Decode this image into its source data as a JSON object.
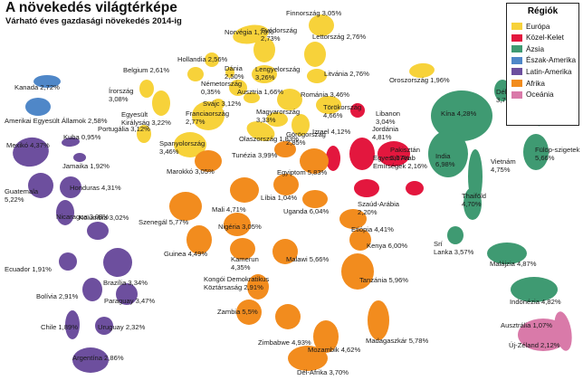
{
  "header": {
    "title": "A növekedés világtérképe",
    "subtitle": "Várható éves gazdasági növekedés 2014-ig"
  },
  "legend": {
    "title": "Régiók",
    "items": [
      {
        "label": "Európa",
        "color": "#f7d23a"
      },
      {
        "label": "Közel-Kelet",
        "color": "#e3173e"
      },
      {
        "label": "Ázsia",
        "color": "#3f9a72"
      },
      {
        "label": "Észak-Amerika",
        "color": "#4f87c8"
      },
      {
        "label": "Latin-Amerika",
        "color": "#6d4f9e"
      },
      {
        "label": "Afrika",
        "color": "#f28c1e"
      },
      {
        "label": "Oceánia",
        "color": "#d97aa9"
      }
    ]
  },
  "countries": [
    {
      "label": "Finnország 3,05%",
      "region": "Európa"
    },
    {
      "label": "Norvégia 1,73%",
      "region": "Európa"
    },
    {
      "label": "Svédország 2,73%",
      "region": "Európa"
    },
    {
      "label": "Lettország 2,76%",
      "region": "Európa"
    },
    {
      "label": "Hollandia 2,56%",
      "region": "Európa"
    },
    {
      "label": "Belgium 2,61%",
      "region": "Európa"
    },
    {
      "label": "Dánia 2,50%",
      "region": "Európa"
    },
    {
      "label": "Lengyelország 3,26%",
      "region": "Európa"
    },
    {
      "label": "Litvánia 2,76%",
      "region": "Európa"
    },
    {
      "label": "Oroszország 1,96%",
      "region": "Európa"
    },
    {
      "label": "Németország 0,35%",
      "region": "Európa"
    },
    {
      "label": "Írország 3,08%",
      "region": "Európa"
    },
    {
      "label": "Ausztria 1,66%",
      "region": "Európa"
    },
    {
      "label": "Románia 3,46%",
      "region": "Európa"
    },
    {
      "label": "Egyesült Királyság 3,22%",
      "region": "Európa"
    },
    {
      "label": "Svájc 3,12%",
      "region": "Európa"
    },
    {
      "label": "Franciaország 2,77%",
      "region": "Európa"
    },
    {
      "label": "Magyarország 3,33%",
      "region": "Európa"
    },
    {
      "label": "Törökország 4,66%",
      "region": "Európa"
    },
    {
      "label": "Portugália 3,12%",
      "region": "Európa"
    },
    {
      "label": "Spanyolország 3,46%",
      "region": "Európa"
    },
    {
      "label": "Olaszország 1,83%",
      "region": "Európa"
    },
    {
      "label": "Görögország 2,85%",
      "region": "Európa"
    },
    {
      "label": "Kanada 2,72%",
      "region": "Észak-Amerika"
    },
    {
      "label": "Amerikai Egyesült Államok 2,58%",
      "region": "Észak-Amerika"
    },
    {
      "label": "Mexikó 4,37%",
      "region": "Latin-Amerika"
    },
    {
      "label": "Kuba 0,95%",
      "region": "Latin-Amerika"
    },
    {
      "label": "Jamaika 1,92%",
      "region": "Latin-Amerika"
    },
    {
      "label": "Guatemala 5,22%",
      "region": "Latin-Amerika"
    },
    {
      "label": "Honduras 4,31%",
      "region": "Latin-Amerika"
    },
    {
      "label": "Nicaragua 3,08%",
      "region": "Latin-Amerika"
    },
    {
      "label": "Kolumbia 3,02%",
      "region": "Latin-Amerika"
    },
    {
      "label": "Ecuador 1,91%",
      "region": "Latin-Amerika"
    },
    {
      "label": "Brazília 3,34%",
      "region": "Latin-Amerika"
    },
    {
      "label": "Bolívia 2,91%",
      "region": "Latin-Amerika"
    },
    {
      "label": "Paraguay 3,47%",
      "region": "Latin-Amerika"
    },
    {
      "label": "Chile 1,89%",
      "region": "Latin-Amerika"
    },
    {
      "label": "Uruguay 2,32%",
      "region": "Latin-Amerika"
    },
    {
      "label": "Argentína 2,86%",
      "region": "Latin-Amerika"
    },
    {
      "label": "Libanon 3,04%",
      "region": "Közel-Kelet"
    },
    {
      "label": "Jordánia 4,81%",
      "region": "Közel-Kelet"
    },
    {
      "label": "Izrael 4,12%",
      "region": "Közel-Kelet"
    },
    {
      "label": "Pakisztán 5,07%",
      "region": "Közel-Kelet"
    },
    {
      "label": "Egyesült Arab Emírségek 2,16%",
      "region": "Közel-Kelet"
    },
    {
      "label": "Szaúd-Arábia 2,20%",
      "region": "Közel-Kelet"
    },
    {
      "label": "Tunézia 3,99%",
      "region": "Afrika"
    },
    {
      "label": "Marokkó 3,05%",
      "region": "Afrika"
    },
    {
      "label": "Egyiptom 5,83%",
      "region": "Afrika"
    },
    {
      "label": "Líbia 1,04%",
      "region": "Afrika"
    },
    {
      "label": "Mali 4,71%",
      "region": "Afrika"
    },
    {
      "label": "Szenegál 5,77%",
      "region": "Afrika"
    },
    {
      "label": "Uganda 6,04%",
      "region": "Afrika"
    },
    {
      "label": "Etiópia 4,41%",
      "region": "Afrika"
    },
    {
      "label": "Nigéria 3,05%",
      "region": "Afrika"
    },
    {
      "label": "Guinea 4,49%",
      "region": "Afrika"
    },
    {
      "label": "Kenya 6,00%",
      "region": "Afrika"
    },
    {
      "label": "Kamerun 4,35%",
      "region": "Afrika"
    },
    {
      "label": "Malawi 5,66%",
      "region": "Afrika"
    },
    {
      "label": "Kongói Demokratikus Köztársaság 2,91%",
      "region": "Afrika"
    },
    {
      "label": "Tanzánia 5,96%",
      "region": "Afrika"
    },
    {
      "label": "Zambia 5,5%",
      "region": "Afrika"
    },
    {
      "label": "Zimbabwe 4,93%",
      "region": "Afrika"
    },
    {
      "label": "Madagaszkár 5,78%",
      "region": "Afrika"
    },
    {
      "label": "Mozambik 4,62%",
      "region": "Afrika"
    },
    {
      "label": "Dél-Afrika 3,70%",
      "region": "Afrika"
    },
    {
      "label": "Kína 4,28%",
      "region": "Ázsia"
    },
    {
      "label": "Dél-Korea 3,72%",
      "region": "Ázsia"
    },
    {
      "label": "Japán 2,46%",
      "region": "Ázsia"
    },
    {
      "label": "India 6,98%",
      "region": "Ázsia"
    },
    {
      "label": "Vietnám 4,75%",
      "region": "Ázsia"
    },
    {
      "label": "Fülöp-szigetek 5,66%",
      "region": "Ázsia"
    },
    {
      "label": "Thaiföld 4,70%",
      "region": "Ázsia"
    },
    {
      "label": "Srí Lanka 3,57%",
      "region": "Ázsia"
    },
    {
      "label": "Malájzia 4,87%",
      "region": "Ázsia"
    },
    {
      "label": "Indonézia 4,82%",
      "region": "Ázsia"
    },
    {
      "label": "Ausztrália 1,07%",
      "region": "Oceánia"
    },
    {
      "label": "Új-Zéland 2,12%",
      "region": "Oceánia"
    }
  ]
}
